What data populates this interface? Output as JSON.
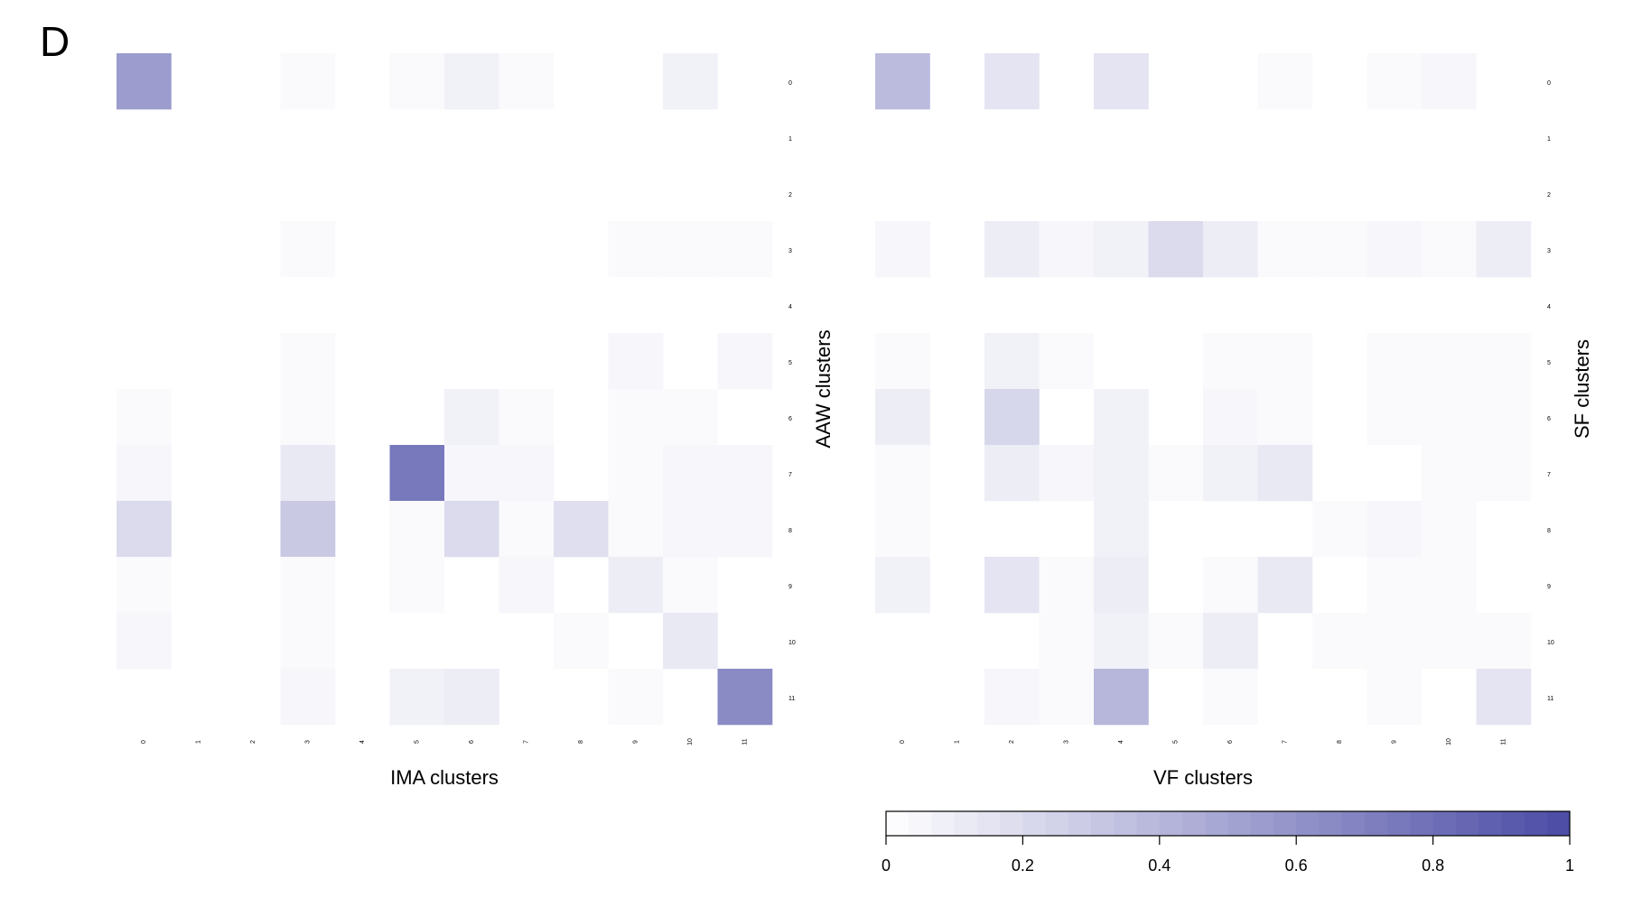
{
  "panel_label": "D",
  "chart_data": [
    {
      "type": "heatmap",
      "xlabel": "IMA clusters",
      "ylabel": "AAW clusters",
      "x_categories": [
        "0",
        "1",
        "2",
        "3",
        "4",
        "5",
        "6",
        "7",
        "8",
        "9",
        "10",
        "11"
      ],
      "y_categories": [
        "0",
        "1",
        "2",
        "3",
        "4",
        "5",
        "6",
        "7",
        "8",
        "9",
        "10",
        "11"
      ],
      "value_range": [
        0,
        1
      ],
      "values": [
        [
          0.55,
          0,
          0,
          0.03,
          0,
          0.03,
          0.08,
          0.03,
          0,
          0,
          0.08,
          0
        ],
        [
          0,
          0,
          0,
          0,
          0,
          0,
          0,
          0,
          0,
          0,
          0,
          0
        ],
        [
          0,
          0,
          0,
          0,
          0,
          0,
          0,
          0,
          0,
          0,
          0,
          0
        ],
        [
          0,
          0,
          0,
          0.03,
          0,
          0,
          0,
          0,
          0,
          0.03,
          0.03,
          0.03
        ],
        [
          0,
          0,
          0,
          0,
          0,
          0,
          0,
          0,
          0,
          0,
          0,
          0
        ],
        [
          0,
          0,
          0,
          0.03,
          0,
          0,
          0,
          0,
          0,
          0.05,
          0,
          0.05
        ],
        [
          0.03,
          0,
          0,
          0.03,
          0,
          0,
          0.08,
          0.03,
          0,
          0.03,
          0.03,
          0
        ],
        [
          0.05,
          0,
          0,
          0.12,
          0,
          0.75,
          0.05,
          0.05,
          0,
          0.03,
          0.05,
          0.05
        ],
        [
          0.2,
          0,
          0,
          0.3,
          0,
          0.03,
          0.2,
          0.03,
          0.18,
          0.03,
          0.05,
          0.05
        ],
        [
          0.03,
          0,
          0,
          0.03,
          0,
          0.03,
          0,
          0.05,
          0,
          0.1,
          0.03,
          0
        ],
        [
          0.05,
          0,
          0,
          0.03,
          0,
          0,
          0,
          0,
          0.03,
          0,
          0.12,
          0
        ],
        [
          0,
          0,
          0,
          0.05,
          0,
          0.08,
          0.1,
          0,
          0,
          0.03,
          0,
          0.65
        ]
      ]
    },
    {
      "type": "heatmap",
      "xlabel": "VF clusters",
      "ylabel": "SF clusters",
      "x_categories": [
        "0",
        "1",
        "2",
        "3",
        "4",
        "5",
        "6",
        "7",
        "8",
        "9",
        "10",
        "11"
      ],
      "y_categories": [
        "0",
        "1",
        "2",
        "3",
        "4",
        "5",
        "6",
        "7",
        "8",
        "9",
        "10",
        "11"
      ],
      "value_range": [
        0,
        1
      ],
      "values": [
        [
          0.38,
          0,
          0.15,
          0,
          0.15,
          0,
          0,
          0.03,
          0,
          0.03,
          0.05,
          0
        ],
        [
          0,
          0,
          0,
          0,
          0,
          0,
          0,
          0,
          0,
          0,
          0,
          0
        ],
        [
          0,
          0,
          0,
          0,
          0,
          0,
          0,
          0,
          0,
          0,
          0,
          0
        ],
        [
          0.05,
          0,
          0.1,
          0.05,
          0.08,
          0.2,
          0.1,
          0.03,
          0.03,
          0.05,
          0.03,
          0.1
        ],
        [
          0,
          0,
          0,
          0,
          0,
          0,
          0,
          0,
          0,
          0,
          0,
          0
        ],
        [
          0.03,
          0,
          0.08,
          0.03,
          0,
          0,
          0.03,
          0.03,
          0,
          0.03,
          0.03,
          0.03
        ],
        [
          0.1,
          0,
          0.22,
          0,
          0.08,
          0,
          0.05,
          0.03,
          0,
          0.03,
          0.03,
          0.03
        ],
        [
          0.03,
          0,
          0.1,
          0.05,
          0.08,
          0.03,
          0.08,
          0.12,
          0,
          0,
          0.03,
          0.03
        ],
        [
          0.03,
          0,
          0,
          0,
          0.08,
          0,
          0,
          0,
          0.03,
          0.05,
          0.03,
          0
        ],
        [
          0.08,
          0,
          0.15,
          0.03,
          0.1,
          0,
          0.03,
          0.12,
          0,
          0.03,
          0.03,
          0
        ],
        [
          0,
          0,
          0,
          0.03,
          0.08,
          0.03,
          0.1,
          0,
          0.03,
          0.03,
          0.03,
          0.03
        ],
        [
          0,
          0,
          0.05,
          0.03,
          0.4,
          0,
          0.03,
          0,
          0,
          0.03,
          0,
          0.15
        ]
      ]
    }
  ],
  "color_scale": {
    "low_color": "#ffffff",
    "high_color": "#4b4ba6",
    "min": 0,
    "max": 1,
    "tick_labels": [
      "0",
      "0.2",
      "0.4",
      "0.6",
      "0.8",
      "1"
    ]
  }
}
